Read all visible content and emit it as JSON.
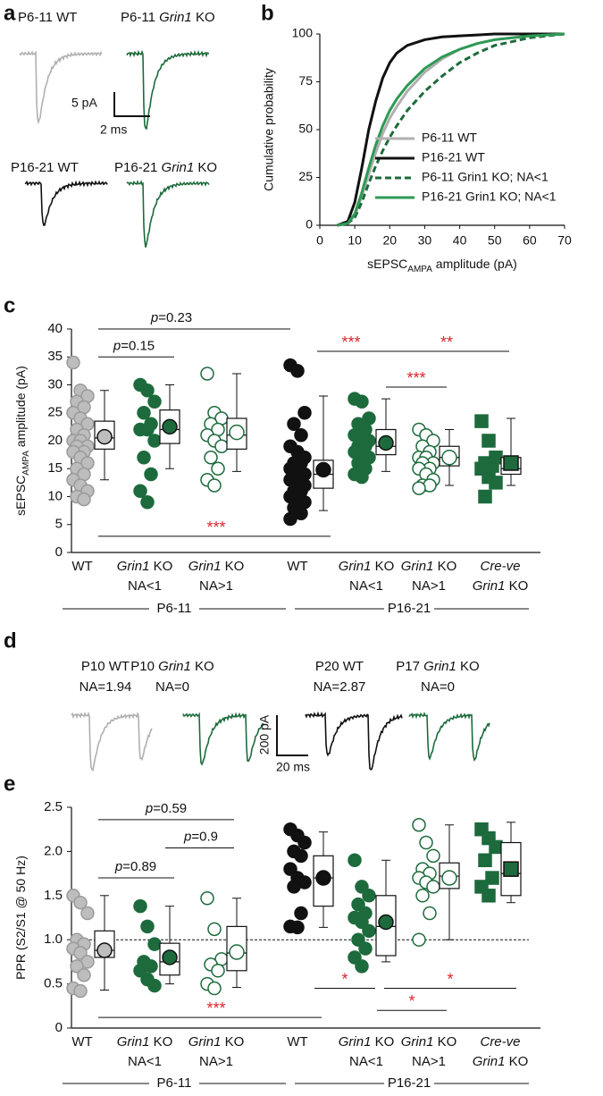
{
  "panel_labels": [
    "a",
    "b",
    "c",
    "d",
    "e"
  ],
  "panel_a": {
    "traces": [
      {
        "label": [
          "P6-11 WT"
        ],
        "color": "#b0b0b0"
      },
      {
        "label": [
          "P6-11 ",
          {
            "i": "Grin1"
          },
          " KO"
        ],
        "color": "#1d6b3c"
      },
      {
        "label": [
          "P16-21 WT"
        ],
        "color": "#111111"
      },
      {
        "label": [
          "P16-21 ",
          {
            "i": "Grin1"
          },
          " KO"
        ],
        "color": "#1d6b3c"
      }
    ],
    "scale_y": "5 pA",
    "scale_x": "2 ms"
  },
  "panel_d": {
    "traces": [
      {
        "label": [
          "P10 WT"
        ],
        "na": "NA=1.94",
        "color": "#b0b0b0"
      },
      {
        "label": [
          "P10 ",
          {
            "i": "Grin1"
          },
          " KO"
        ],
        "na": "NA=0",
        "color": "#1d6b3c"
      },
      {
        "label": [
          "P20 WT"
        ],
        "na": "NA=2.87",
        "color": "#111111"
      },
      {
        "label": [
          "P17 ",
          {
            "i": "Grin1"
          },
          " KO"
        ],
        "na": "NA=0",
        "color": "#1d6b3c"
      }
    ],
    "scale_y": "200 pA",
    "scale_x": "20 ms"
  },
  "chart_data": [
    {
      "type": "line",
      "xlabel": [
        "sEPSC",
        {
          "sub": "AMPA"
        },
        " amplitude (pA)"
      ],
      "ylabel": "Cumulative probability",
      "x": [
        5,
        8,
        10,
        12,
        14,
        16,
        18,
        20,
        22,
        25,
        30,
        35,
        40,
        45,
        50,
        60,
        70
      ],
      "xlim": [
        0,
        70
      ],
      "xticks": [
        0,
        10,
        20,
        30,
        40,
        50,
        60,
        70
      ],
      "ylim": [
        0,
        100
      ],
      "yticks": [
        0,
        25,
        50,
        75,
        100
      ],
      "legend": "center right",
      "series": [
        {
          "name": "P6-11 WT",
          "color": "#b0b0b0",
          "dashed": false,
          "values": [
            0,
            1,
            5,
            15,
            27,
            38,
            48,
            56,
            62,
            70,
            80,
            87,
            92,
            95,
            97,
            99,
            100
          ]
        },
        {
          "name": "P16-21 WT",
          "color": "#111111",
          "dashed": false,
          "values": [
            0,
            2,
            12,
            30,
            50,
            65,
            77,
            85,
            90,
            94,
            97,
            98.5,
            99,
            99.5,
            100,
            100,
            100
          ]
        },
        {
          "name": "P6-11 Grin1 KO; NA<1",
          "color": "#1d6b3c",
          "dashed": true,
          "values": [
            0,
            1,
            4,
            12,
            22,
            31,
            39,
            46,
            52,
            60,
            70,
            78,
            85,
            90,
            94,
            98,
            100
          ]
        },
        {
          "name": "P16-21 Grin1 KO; NA<1",
          "color": "#2e9a55",
          "dashed": false,
          "values": [
            0,
            1,
            6,
            17,
            30,
            42,
            52,
            60,
            66,
            73,
            82,
            88,
            92,
            95,
            97,
            99,
            100
          ]
        }
      ]
    },
    {
      "type": "box",
      "ylabel": [
        "sEPSC",
        {
          "sub": "AMPA"
        },
        " amplitude (pA)"
      ],
      "ylim": [
        0,
        40
      ],
      "yticks": [
        0,
        5,
        10,
        15,
        20,
        25,
        30,
        35,
        40
      ],
      "categories": [
        [
          [
            "WT"
          ]
        ],
        [
          [
            {
              "i": "Grin1"
            },
            " KO"
          ],
          [
            "NA<1"
          ]
        ],
        [
          [
            {
              "i": "Grin1"
            },
            " KO"
          ],
          [
            "NA>1"
          ]
        ],
        [
          [
            "WT"
          ]
        ],
        [
          [
            {
              "i": "Grin1"
            },
            " KO"
          ],
          [
            "NA<1"
          ]
        ],
        [
          [
            {
              "i": "Grin1"
            },
            " KO"
          ],
          [
            "NA>1"
          ]
        ],
        [
          [
            {
              "i": "Cre-ve"
            }
          ],
          [
            {
              "i": "Grin1"
            },
            " KO"
          ]
        ]
      ],
      "periods": [
        "P6-11",
        "P16-21"
      ],
      "groups": [
        {
          "color": "#bdbdbd",
          "marker": "circle",
          "filled": true,
          "points": [
            34,
            29,
            28,
            27,
            26,
            25,
            24,
            23,
            22,
            21,
            20,
            20,
            19,
            19,
            18,
            18,
            17,
            16,
            15,
            14,
            13,
            12,
            11,
            10,
            9.5
          ],
          "box": {
            "min": 13,
            "q1": 18.5,
            "median": 20.5,
            "q3": 23.5,
            "max": 29
          },
          "mean": 20.7
        },
        {
          "color": "#1d6b3c",
          "marker": "circle",
          "filled": true,
          "points": [
            30,
            29,
            27,
            25,
            23,
            22,
            22,
            20,
            17,
            14,
            11,
            9
          ],
          "box": {
            "min": 15,
            "q1": 19.5,
            "median": 22,
            "q3": 25.5,
            "max": 30
          },
          "mean": 22.5
        },
        {
          "color": "#1d6b3c",
          "marker": "circle",
          "filled": false,
          "points": [
            32,
            25,
            24,
            23,
            22,
            21,
            20,
            19,
            17,
            15,
            13,
            12
          ],
          "box": {
            "min": 14.5,
            "q1": 18.5,
            "median": 21,
            "q3": 24,
            "max": 32
          },
          "mean": 21.5
        },
        {
          "color": "#111111",
          "marker": "circle",
          "filled": true,
          "points": [
            33.5,
            32.5,
            25,
            23,
            21,
            19,
            18,
            17,
            16,
            16,
            15,
            15,
            14,
            14,
            13,
            13,
            12,
            12,
            11,
            11,
            10,
            10,
            9,
            8,
            7,
            6
          ],
          "box": {
            "min": 7.5,
            "q1": 11.5,
            "median": 14,
            "q3": 16.5,
            "max": 28
          },
          "mean": 14.8
        },
        {
          "color": "#1d6b3c",
          "marker": "circle",
          "filled": true,
          "points": [
            27.5,
            27,
            24,
            23,
            22,
            21,
            20,
            20,
            19,
            19,
            18,
            18,
            17,
            16,
            15,
            14,
            13.5
          ],
          "box": {
            "min": 14.5,
            "q1": 17.5,
            "median": 19,
            "q3": 22,
            "max": 27.5
          },
          "mean": 19.6
        },
        {
          "color": "#1d6b3c",
          "marker": "circle",
          "filled": false,
          "points": [
            22,
            21,
            20,
            19,
            18,
            17,
            17,
            16,
            16,
            15,
            15,
            14,
            13,
            12,
            12,
            11.5
          ],
          "box": {
            "min": 12,
            "q1": 15.5,
            "median": 17,
            "q3": 19,
            "max": 22
          },
          "mean": 17
        },
        {
          "color": "#1d6b3c",
          "marker": "square",
          "filled": true,
          "points": [
            23.5,
            20,
            17,
            16,
            15.5,
            15,
            13.5,
            12.5,
            10
          ],
          "box": {
            "min": 12,
            "q1": 14,
            "median": 15,
            "q3": 17,
            "max": 24
          },
          "mean": 16
        }
      ],
      "annotations": [
        {
          "text": [
            {
              "i": "p"
            },
            "=0.23"
          ],
          "color": "#111111"
        },
        {
          "text": [
            {
              "i": "p"
            },
            "=0.15"
          ],
          "color": "#111111"
        },
        {
          "text": [
            "***"
          ],
          "color": "#d9262c"
        },
        {
          "text": [
            "**"
          ],
          "color": "#d9262c"
        },
        {
          "text": [
            "***"
          ],
          "color": "#d9262c"
        },
        {
          "text": [
            "***"
          ],
          "color": "#d9262c"
        }
      ]
    },
    {
      "type": "box",
      "ylabel": [
        "PPR (S2/S1 @ 50 Hz)"
      ],
      "ylim": [
        0,
        2.5
      ],
      "yticks": [
        0,
        0.5,
        {
          "value": 1,
          "label": "1.0"
        },
        1.5,
        {
          "value": 2,
          "label": "2.0"
        },
        2.5
      ],
      "refline": 1,
      "categories": [
        [
          [
            "WT"
          ]
        ],
        [
          [
            {
              "i": "Grin1"
            },
            " KO"
          ],
          [
            "NA<1"
          ]
        ],
        [
          [
            {
              "i": "Grin1"
            },
            " KO"
          ],
          [
            "NA>1"
          ]
        ],
        [
          [
            "WT"
          ]
        ],
        [
          [
            {
              "i": "Grin1"
            },
            " KO"
          ],
          [
            "NA<1"
          ]
        ],
        [
          [
            {
              "i": "Grin1"
            },
            " KO"
          ],
          [
            "NA>1"
          ]
        ],
        [
          [
            {
              "i": "Cre-ve"
            }
          ],
          [
            {
              "i": "Grin1"
            },
            " KO"
          ]
        ]
      ],
      "periods": [
        "P6-11",
        "P16-21"
      ],
      "groups": [
        {
          "color": "#bdbdbd",
          "marker": "circle",
          "filled": true,
          "points": [
            1.5,
            1.42,
            1.3,
            1.0,
            0.95,
            0.9,
            0.85,
            0.75,
            0.7,
            0.6,
            0.45,
            0.42
          ],
          "box": {
            "min": 0.43,
            "q1": 0.8,
            "median": 0.88,
            "q3": 1.1,
            "max": 1.5
          },
          "mean": 0.88
        },
        {
          "color": "#1d6b3c",
          "marker": "circle",
          "filled": true,
          "points": [
            1.38,
            1.15,
            0.95,
            0.75,
            0.7,
            0.65,
            0.55,
            0.48
          ],
          "box": {
            "min": 0.5,
            "q1": 0.6,
            "median": 0.75,
            "q3": 0.96,
            "max": 1.38
          },
          "mean": 0.8
        },
        {
          "color": "#1d6b3c",
          "marker": "circle",
          "filled": false,
          "points": [
            1.47,
            1.12,
            0.78,
            0.72,
            0.65,
            0.5,
            0.45
          ],
          "box": {
            "min": 0.46,
            "q1": 0.65,
            "median": 0.85,
            "q3": 1.15,
            "max": 1.47
          },
          "mean": 0.86
        },
        {
          "color": "#111111",
          "marker": "circle",
          "filled": true,
          "points": [
            2.25,
            2.18,
            2.1,
            2.0,
            1.95,
            1.8,
            1.7,
            1.65,
            1.6,
            1.3,
            1.15,
            1.14
          ],
          "box": {
            "min": 1.14,
            "q1": 1.38,
            "median": 1.7,
            "q3": 1.95,
            "max": 2.22
          },
          "mean": 1.7
        },
        {
          "color": "#1d6b3c",
          "marker": "circle",
          "filled": true,
          "points": [
            1.9,
            1.6,
            1.5,
            1.4,
            1.3,
            1.25,
            1.2,
            1.1,
            1.0,
            0.9,
            0.8,
            0.7
          ],
          "box": {
            "min": 0.75,
            "q1": 0.82,
            "median": 1.15,
            "q3": 1.5,
            "max": 1.9
          },
          "mean": 1.2
        },
        {
          "color": "#1d6b3c",
          "marker": "circle",
          "filled": false,
          "points": [
            2.3,
            2.1,
            1.95,
            1.8,
            1.75,
            1.7,
            1.65,
            1.6,
            1.5,
            1.3,
            1.0
          ],
          "box": {
            "min": 1.0,
            "q1": 1.58,
            "median": 1.72,
            "q3": 1.87,
            "max": 2.3
          },
          "mean": 1.7
        },
        {
          "color": "#1d6b3c",
          "marker": "square",
          "filled": true,
          "points": [
            2.25,
            2.15,
            2.05,
            1.9,
            1.7,
            1.6,
            1.5
          ],
          "box": {
            "min": 1.42,
            "q1": 1.5,
            "median": 1.75,
            "q3": 2.1,
            "max": 2.33
          },
          "mean": 1.8
        }
      ],
      "annotations": [
        {
          "text": [
            {
              "i": "p"
            },
            "=0.59"
          ],
          "color": "#111111"
        },
        {
          "text": [
            {
              "i": "p"
            },
            "=0.9"
          ],
          "color": "#111111"
        },
        {
          "text": [
            {
              "i": "p"
            },
            "=0.89"
          ],
          "color": "#111111"
        },
        {
          "text": [
            "***"
          ],
          "color": "#d9262c"
        },
        {
          "text": [
            "*"
          ],
          "color": "#d9262c"
        },
        {
          "text": [
            "*"
          ],
          "color": "#d9262c"
        },
        {
          "text": [
            "*"
          ],
          "color": "#d9262c"
        }
      ]
    }
  ]
}
